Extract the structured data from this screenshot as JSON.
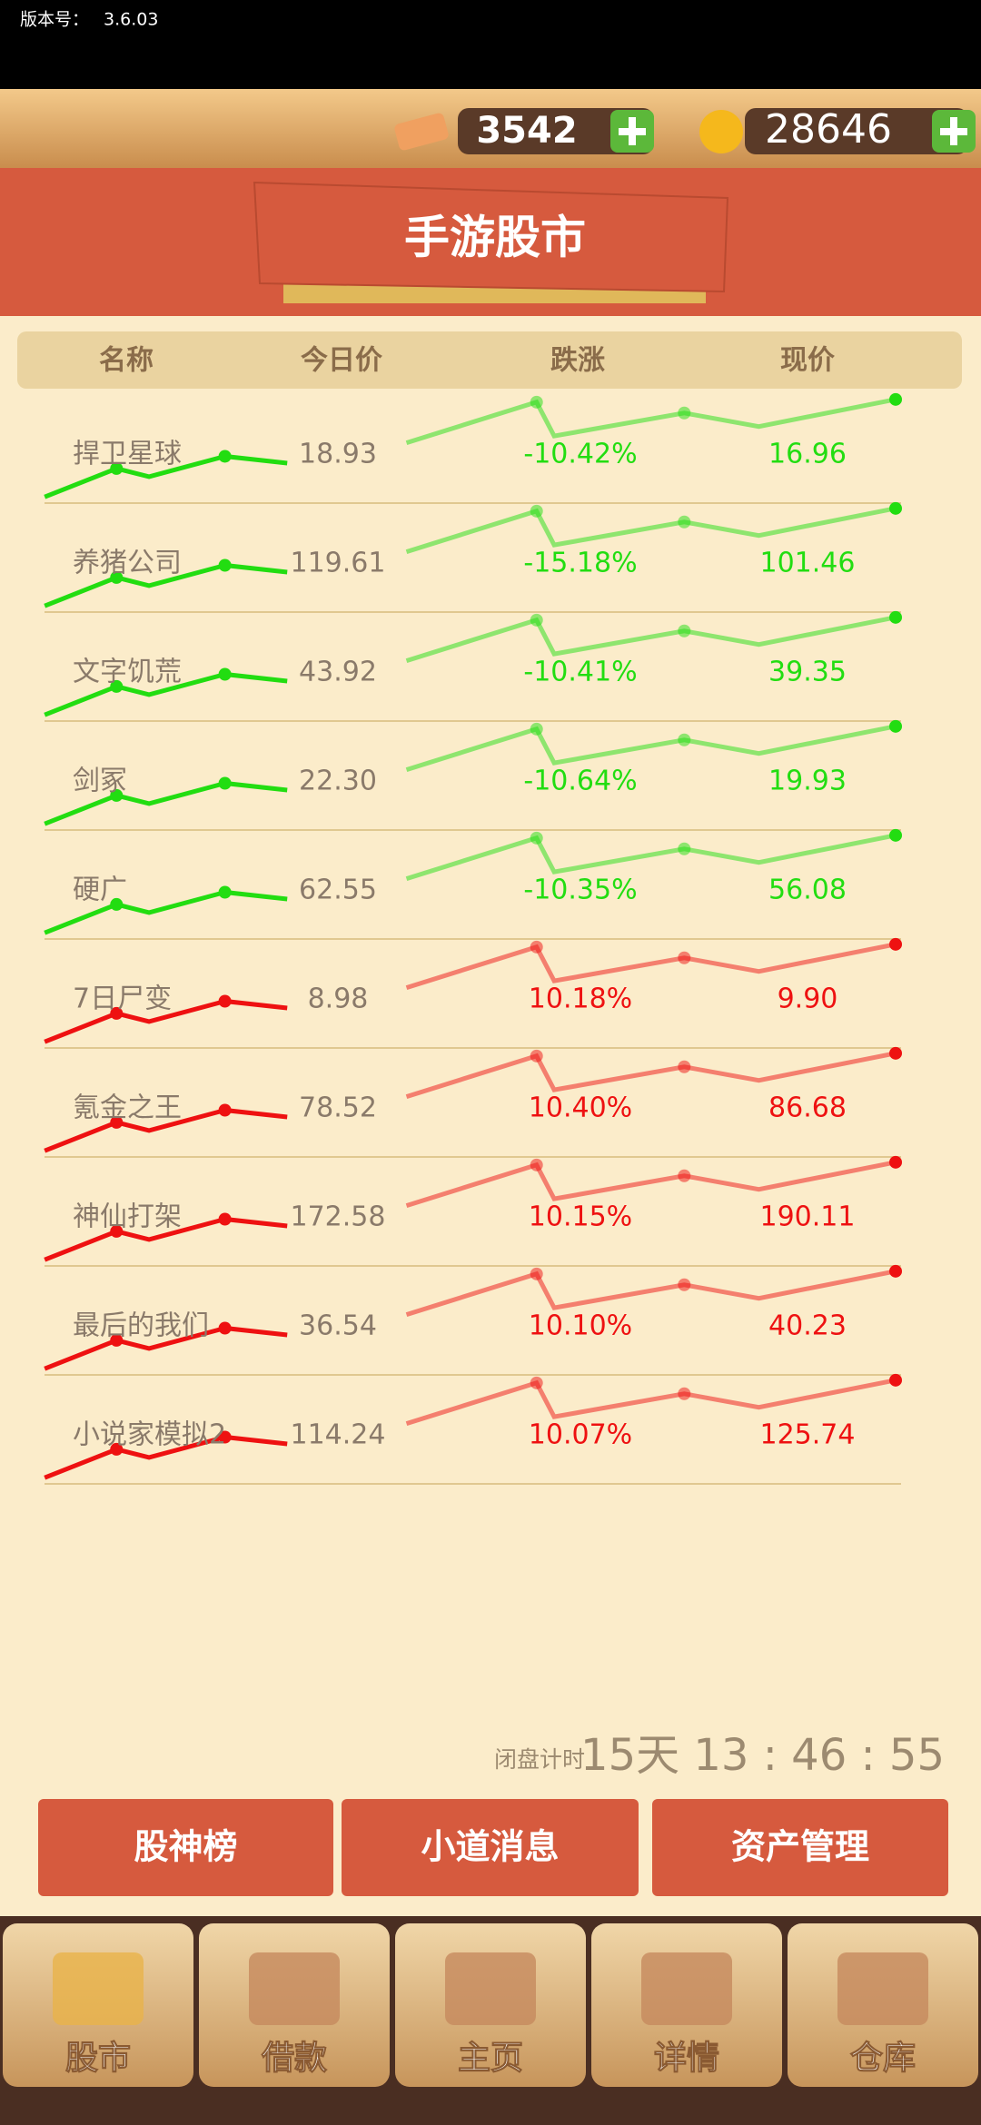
{
  "status": {
    "version_label": "版本号：",
    "version": "3.6.03"
  },
  "currency": {
    "cash": "3542",
    "coins": "28646"
  },
  "title": "手游股市",
  "table": {
    "headers": [
      "名称",
      "今日价",
      "跌涨",
      "现价"
    ],
    "rows": [
      {
        "name": "捍卫星球",
        "today": "18.93",
        "change": "-10.42%",
        "current": "16.96",
        "color": "#22dd11"
      },
      {
        "name": "养猪公司",
        "today": "119.61",
        "change": "-15.18%",
        "current": "101.46",
        "color": "#22dd11"
      },
      {
        "name": "文字饥荒",
        "today": "43.92",
        "change": "-10.41%",
        "current": "39.35",
        "color": "#22dd11"
      },
      {
        "name": "剑冢",
        "today": "22.30",
        "change": "-10.64%",
        "current": "19.93",
        "color": "#22dd11"
      },
      {
        "name": "硬广",
        "today": "62.55",
        "change": "-10.35%",
        "current": "56.08",
        "color": "#22dd11"
      },
      {
        "name": "7日尸变",
        "today": "8.98",
        "change": "10.18%",
        "current": "9.90",
        "color": "#ee1111"
      },
      {
        "name": "氪金之王",
        "today": "78.52",
        "change": "10.40%",
        "current": "86.68",
        "color": "#ee1111"
      },
      {
        "name": "神仙打架",
        "today": "172.58",
        "change": "10.15%",
        "current": "190.11",
        "color": "#ee1111"
      },
      {
        "name": "最后的我们",
        "today": "36.54",
        "change": "10.10%",
        "current": "40.23",
        "color": "#ee1111"
      },
      {
        "name": "小说家模拟2",
        "today": "114.24",
        "change": "10.07%",
        "current": "125.74",
        "color": "#ee1111"
      }
    ]
  },
  "countdown": {
    "label": "闭盘计时",
    "time": "15天 13 : 46 : 55"
  },
  "buttons": [
    "股神榜",
    "小道消息",
    "资产管理"
  ],
  "nav": [
    "股市",
    "借款",
    "主页",
    "详情",
    "仓库"
  ]
}
